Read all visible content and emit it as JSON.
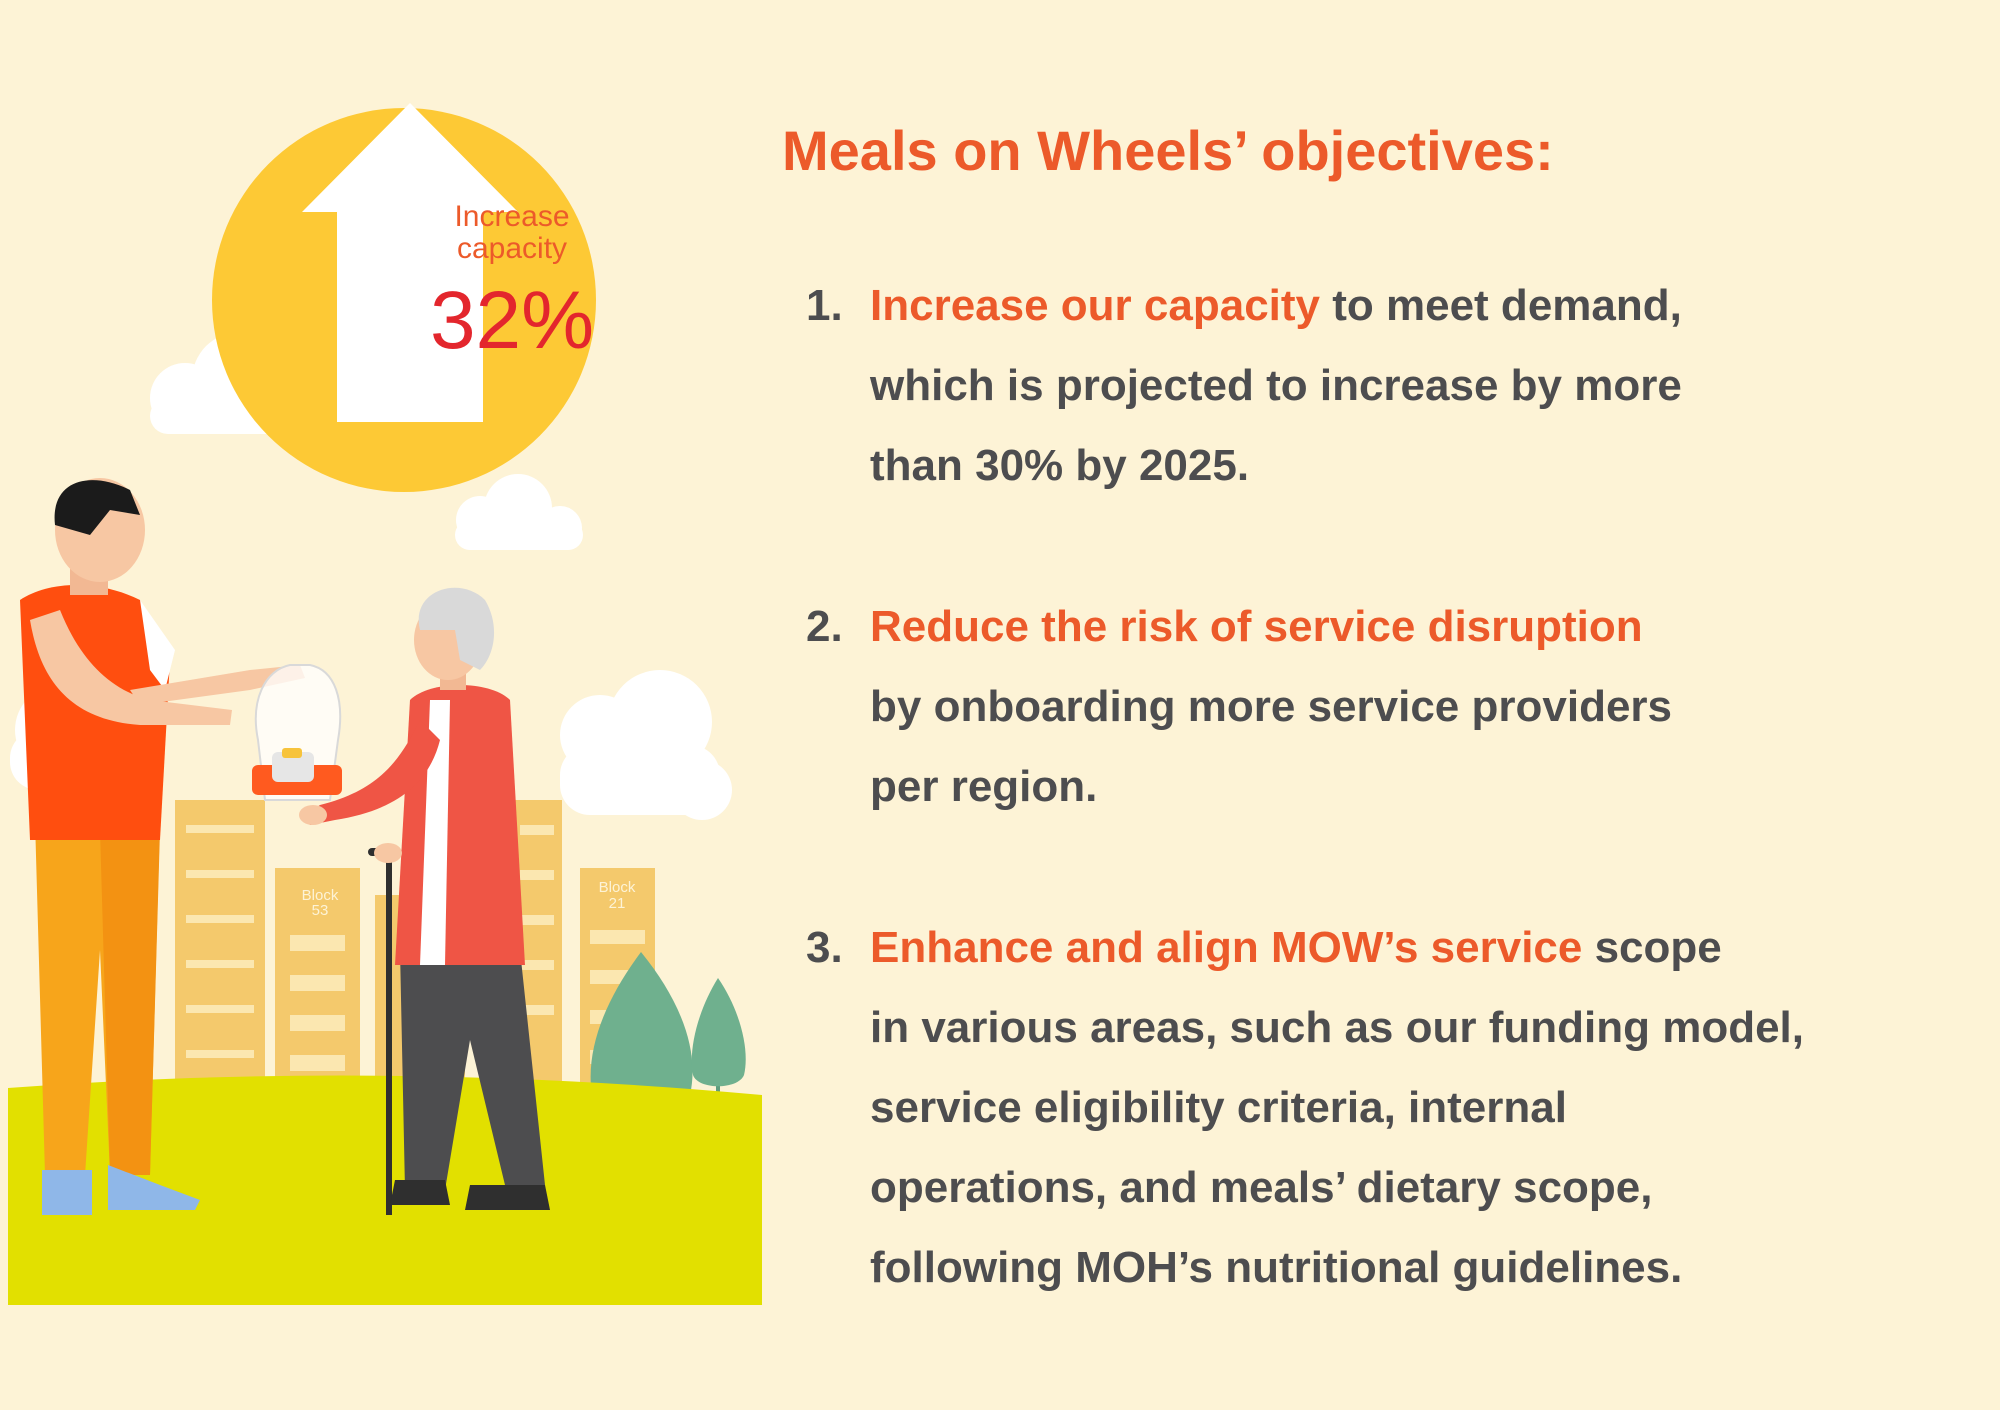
{
  "heading": "Meals on Wheels’ objectives:",
  "badge": {
    "label_line1": "Increase",
    "label_line2": "capacity",
    "value": "32%"
  },
  "buildings": {
    "block_left_line1": "Block",
    "block_left_line2": "53",
    "block_right_line1": "Block",
    "block_right_line2": "21"
  },
  "objectives": [
    {
      "number": "1.",
      "highlight": "Increase our capacity",
      "first_line_rest": " to meet demand,",
      "lines": [
        "which is projected to increase by more",
        "than 30% by 2025."
      ]
    },
    {
      "number": "2.",
      "highlight": "Reduce the risk of service disruption",
      "first_line_rest": "",
      "lines": [
        "by onboarding more service providers",
        "per region."
      ]
    },
    {
      "number": "3.",
      "highlight": "Enhance and align MOW’s service",
      "first_line_rest": " scope",
      "lines": [
        "in various areas, such as our funding model,",
        "service eligibility criteria, internal",
        "operations, and meals’ dietary scope,",
        "following MOH’s  nutritional guidelines."
      ]
    }
  ],
  "colors": {
    "background": "#fdf3d6",
    "accent_orange": "#ec5a2a",
    "text_gray": "#4d4d4f",
    "badge_yellow": "#fdc935",
    "value_red": "#e3262d",
    "grass": "#e2e000"
  }
}
